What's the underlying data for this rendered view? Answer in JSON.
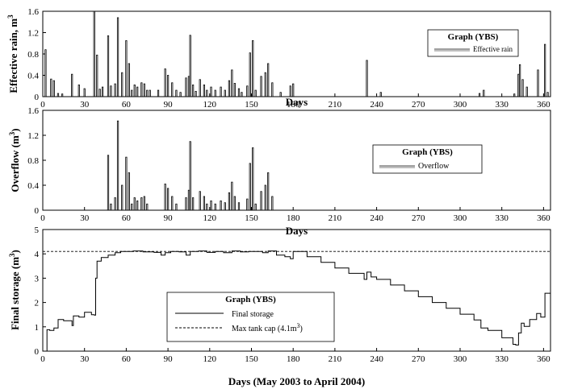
{
  "chart_data": [
    {
      "type": "bar",
      "ylabel": "Effective rain, m",
      "ylabel_sup": "3",
      "xlabel": "Days",
      "xlim": [
        0,
        365
      ],
      "ylim": [
        0,
        1.6
      ],
      "xticks": [
        0,
        30,
        60,
        90,
        120,
        150,
        180,
        210,
        240,
        270,
        300,
        330,
        360
      ],
      "yticks": [
        "0",
        "0.4",
        "0.8",
        "1.2",
        "1.6"
      ],
      "yticks_values": [
        0,
        0.4,
        0.8,
        1.2,
        1.6
      ],
      "legend": {
        "title": "Graph (YBS)",
        "items": [
          "Effective rain"
        ],
        "placement": "top-right"
      },
      "series": [
        {
          "name": "Effective rain",
          "points": [
            [
              2,
              0.88
            ],
            [
              6,
              0.33
            ],
            [
              8,
              0.3
            ],
            [
              11,
              0.06
            ],
            [
              14,
              0.05
            ],
            [
              21,
              0.42
            ],
            [
              26,
              0.22
            ],
            [
              30,
              0.15
            ],
            [
              37,
              1.6
            ],
            [
              39,
              0.78
            ],
            [
              41,
              0.14
            ],
            [
              43,
              0.18
            ],
            [
              47,
              1.14
            ],
            [
              49,
              0.2
            ],
            [
              52,
              0.24
            ],
            [
              54,
              1.48
            ],
            [
              57,
              0.45
            ],
            [
              60,
              1.05
            ],
            [
              62,
              0.62
            ],
            [
              64,
              0.12
            ],
            [
              66,
              0.22
            ],
            [
              68,
              0.18
            ],
            [
              71,
              0.26
            ],
            [
              73,
              0.24
            ],
            [
              75,
              0.12
            ],
            [
              77,
              0.12
            ],
            [
              83,
              0.12
            ],
            [
              88,
              0.52
            ],
            [
              90,
              0.4
            ],
            [
              93,
              0.26
            ],
            [
              96,
              0.12
            ],
            [
              99,
              0.08
            ],
            [
              103,
              0.35
            ],
            [
              105,
              0.38
            ],
            [
              106,
              1.15
            ],
            [
              108,
              0.22
            ],
            [
              110,
              0.1
            ],
            [
              113,
              0.32
            ],
            [
              116,
              0.22
            ],
            [
              118,
              0.12
            ],
            [
              121,
              0.18
            ],
            [
              124,
              0.12
            ],
            [
              128,
              0.18
            ],
            [
              131,
              0.12
            ],
            [
              134,
              0.3
            ],
            [
              136,
              0.5
            ],
            [
              138,
              0.25
            ],
            [
              141,
              0.15
            ],
            [
              143,
              0.08
            ],
            [
              147,
              0.2
            ],
            [
              149,
              0.82
            ],
            [
              151,
              1.05
            ],
            [
              153,
              0.12
            ],
            [
              157,
              0.38
            ],
            [
              160,
              0.45
            ],
            [
              162,
              0.62
            ],
            [
              165,
              0.26
            ],
            [
              171,
              0.08
            ],
            [
              178,
              0.2
            ],
            [
              180,
              0.24
            ],
            [
              233,
              0.68
            ],
            [
              243,
              0.08
            ],
            [
              314,
              0.06
            ],
            [
              317,
              0.12
            ],
            [
              339,
              0.05
            ],
            [
              342,
              0.42
            ],
            [
              343,
              0.6
            ],
            [
              345,
              0.32
            ],
            [
              348,
              0.18
            ],
            [
              356,
              0.5
            ],
            [
              361,
              0.98
            ],
            [
              363,
              0.08
            ]
          ]
        }
      ]
    },
    {
      "type": "bar",
      "ylabel": "Overflow (m",
      "ylabel_sup": "3",
      "ylabel_end": ")",
      "xlabel": "Days",
      "xlim": [
        0,
        365
      ],
      "ylim": [
        0,
        1.6
      ],
      "xticks": [
        0,
        30,
        60,
        90,
        120,
        150,
        180,
        210,
        240,
        270,
        300,
        330,
        360
      ],
      "yticks": [
        "0",
        "0.4",
        "0.8",
        "1.2",
        "1.6"
      ],
      "yticks_values": [
        0,
        0.4,
        0.8,
        1.2,
        1.6
      ],
      "legend": {
        "title": "Graph (YBS)",
        "items": [
          "Overflow"
        ],
        "placement": "top-right"
      },
      "series": [
        {
          "name": "Overflow",
          "points": [
            [
              47,
              0.88
            ],
            [
              49,
              0.1
            ],
            [
              52,
              0.2
            ],
            [
              54,
              1.43
            ],
            [
              57,
              0.4
            ],
            [
              60,
              0.85
            ],
            [
              62,
              0.6
            ],
            [
              64,
              0.1
            ],
            [
              66,
              0.2
            ],
            [
              68,
              0.15
            ],
            [
              71,
              0.2
            ],
            [
              73,
              0.22
            ],
            [
              75,
              0.1
            ],
            [
              88,
              0.42
            ],
            [
              90,
              0.35
            ],
            [
              93,
              0.22
            ],
            [
              96,
              0.1
            ],
            [
              103,
              0.2
            ],
            [
              105,
              0.32
            ],
            [
              106,
              1.1
            ],
            [
              108,
              0.2
            ],
            [
              113,
              0.3
            ],
            [
              116,
              0.22
            ],
            [
              118,
              0.1
            ],
            [
              121,
              0.15
            ],
            [
              124,
              0.1
            ],
            [
              128,
              0.15
            ],
            [
              131,
              0.12
            ],
            [
              134,
              0.28
            ],
            [
              136,
              0.45
            ],
            [
              138,
              0.22
            ],
            [
              141,
              0.12
            ],
            [
              147,
              0.18
            ],
            [
              149,
              0.75
            ],
            [
              151,
              1.0
            ],
            [
              153,
              0.1
            ],
            [
              157,
              0.3
            ],
            [
              160,
              0.4
            ],
            [
              162,
              0.6
            ],
            [
              165,
              0.22
            ]
          ]
        }
      ]
    },
    {
      "type": "line",
      "ylabel": "Final storage (m",
      "ylabel_sup": "3",
      "ylabel_end": ")",
      "xlabel": "Days (May 2003 to April 2004)",
      "xlim": [
        0,
        365
      ],
      "ylim": [
        0,
        5
      ],
      "xticks": [
        0,
        30,
        60,
        90,
        120,
        150,
        180,
        210,
        240,
        270,
        300,
        330,
        360
      ],
      "yticks": [
        "0",
        "1",
        "2",
        "3",
        "4",
        "5"
      ],
      "yticks_values": [
        0,
        1,
        2,
        3,
        4,
        5
      ],
      "legend": {
        "title": "Graph (YBS)",
        "items": [
          "Final storage",
          "Max tank cap (4.1m",
          "3",
          ")"
        ],
        "placement": "bottom-center"
      },
      "series": [
        {
          "name": "Final storage",
          "points": [
            [
              0,
              0
            ],
            [
              2,
              0
            ],
            [
              3,
              0.88
            ],
            [
              5,
              0.85
            ],
            [
              8,
              0.95
            ],
            [
              11,
              1.3
            ],
            [
              15,
              1.25
            ],
            [
              21,
              1.05
            ],
            [
              22,
              1.45
            ],
            [
              26,
              1.4
            ],
            [
              30,
              1.6
            ],
            [
              35,
              1.5
            ],
            [
              37,
              1.48
            ],
            [
              38,
              3.0
            ],
            [
              39,
              3.7
            ],
            [
              42,
              3.85
            ],
            [
              47,
              3.95
            ],
            [
              52,
              4.05
            ],
            [
              56,
              4.1
            ],
            [
              60,
              4.1
            ],
            [
              65,
              4.12
            ],
            [
              72,
              4.08
            ],
            [
              80,
              4.06
            ],
            [
              85,
              3.95
            ],
            [
              88,
              4.05
            ],
            [
              92,
              4.1
            ],
            [
              98,
              4.08
            ],
            [
              103,
              3.95
            ],
            [
              106,
              4.1
            ],
            [
              112,
              4.12
            ],
            [
              118,
              4.06
            ],
            [
              124,
              4.1
            ],
            [
              130,
              4.05
            ],
            [
              136,
              4.12
            ],
            [
              142,
              4.08
            ],
            [
              148,
              4.1
            ],
            [
              152,
              4.1
            ],
            [
              158,
              4.05
            ],
            [
              162,
              4.12
            ],
            [
              168,
              3.95
            ],
            [
              174,
              3.88
            ],
            [
              178,
              3.8
            ],
            [
              180,
              4.1
            ],
            [
              190,
              3.88
            ],
            [
              200,
              3.65
            ],
            [
              210,
              3.42
            ],
            [
              220,
              3.2
            ],
            [
              231,
              2.95
            ],
            [
              233,
              3.25
            ],
            [
              236,
              3.05
            ],
            [
              240,
              2.95
            ],
            [
              250,
              2.72
            ],
            [
              260,
              2.48
            ],
            [
              270,
              2.24
            ],
            [
              280,
              2.0
            ],
            [
              290,
              1.76
            ],
            [
              300,
              1.52
            ],
            [
              310,
              1.28
            ],
            [
              315,
              0.95
            ],
            [
              320,
              0.85
            ],
            [
              330,
              0.55
            ],
            [
              338,
              0.28
            ],
            [
              340,
              0.25
            ],
            [
              342,
              0.75
            ],
            [
              344,
              1.15
            ],
            [
              346,
              1.02
            ],
            [
              350,
              1.3
            ],
            [
              355,
              1.55
            ],
            [
              358,
              1.4
            ],
            [
              361,
              2.38
            ],
            [
              365,
              2.3
            ]
          ]
        },
        {
          "name": "Max tank cap",
          "points": [
            [
              0,
              4.1
            ],
            [
              365,
              4.1
            ]
          ]
        }
      ]
    }
  ]
}
